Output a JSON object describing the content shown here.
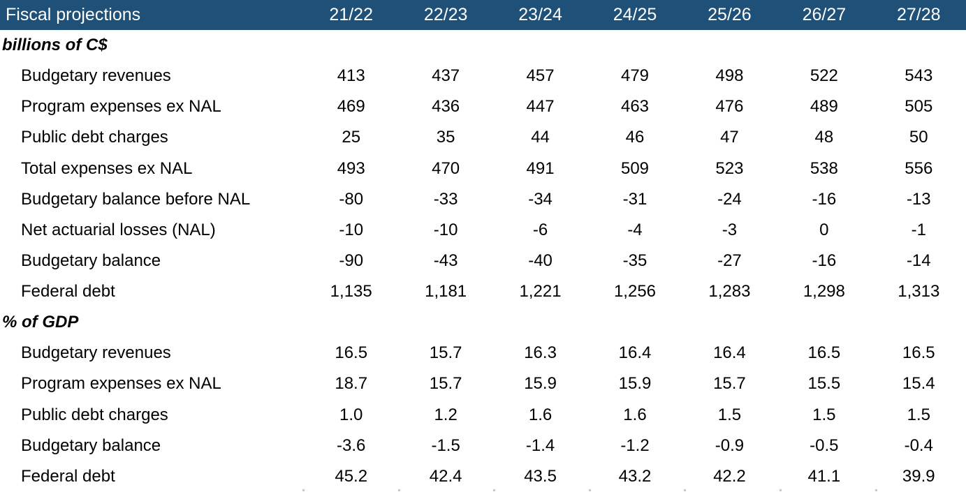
{
  "chart_data": {
    "type": "table",
    "title": "Fiscal projections",
    "columns": [
      "21/22",
      "22/23",
      "23/24",
      "24/25",
      "25/26",
      "26/27",
      "27/28"
    ],
    "sections": [
      {
        "label": "billions of C$",
        "rows": [
          {
            "label": "Budgetary revenues",
            "values": [
              "413",
              "437",
              "457",
              "479",
              "498",
              "522",
              "543"
            ]
          },
          {
            "label": "Program expenses ex NAL",
            "values": [
              "469",
              "436",
              "447",
              "463",
              "476",
              "489",
              "505"
            ]
          },
          {
            "label": "Public debt charges",
            "values": [
              "25",
              "35",
              "44",
              "46",
              "47",
              "48",
              "50"
            ]
          },
          {
            "label": "Total expenses ex NAL",
            "values": [
              "493",
              "470",
              "491",
              "509",
              "523",
              "538",
              "556"
            ]
          },
          {
            "label": "Budgetary balance before NAL",
            "values": [
              "-80",
              "-33",
              "-34",
              "-31",
              "-24",
              "-16",
              "-13"
            ]
          },
          {
            "label": "Net actuarial losses (NAL)",
            "values": [
              "-10",
              "-10",
              "-6",
              "-4",
              "-3",
              "0",
              "-1"
            ]
          },
          {
            "label": "Budgetary balance",
            "values": [
              "-90",
              "-43",
              "-40",
              "-35",
              "-27",
              "-16",
              "-14"
            ]
          },
          {
            "label": "Federal debt",
            "values": [
              "1,135",
              "1,181",
              "1,221",
              "1,256",
              "1,283",
              "1,298",
              "1,313"
            ]
          }
        ]
      },
      {
        "label": "% of GDP",
        "rows": [
          {
            "label": "Budgetary revenues",
            "values": [
              "16.5",
              "15.7",
              "16.3",
              "16.4",
              "16.4",
              "16.5",
              "16.5"
            ]
          },
          {
            "label": "Program expenses ex NAL",
            "values": [
              "18.7",
              "15.7",
              "15.9",
              "15.9",
              "15.7",
              "15.5",
              "15.4"
            ]
          },
          {
            "label": "Public debt charges",
            "values": [
              "1.0",
              "1.2",
              "1.6",
              "1.6",
              "1.5",
              "1.5",
              "1.5"
            ]
          },
          {
            "label": "Budgetary balance",
            "values": [
              "-3.6",
              "-1.5",
              "-1.4",
              "-1.2",
              "-0.9",
              "-0.5",
              "-0.4"
            ]
          },
          {
            "label": "Federal debt",
            "values": [
              "45.2",
              "42.4",
              "43.5",
              "43.2",
              "42.2",
              "41.1",
              "39.9"
            ]
          }
        ]
      }
    ],
    "colors": {
      "header_bg": "#1f5077",
      "header_text": "#ffffff",
      "body_text": "#000000",
      "background": "#ffffff"
    }
  }
}
